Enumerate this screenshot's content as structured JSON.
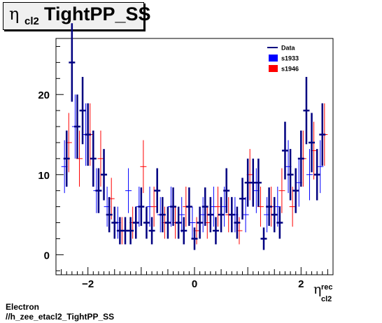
{
  "title": {
    "symbol": "η",
    "subscript": "cl2",
    "name": "TightPP_SS"
  },
  "xaxis": {
    "symbol": "η",
    "sup": "rec",
    "sub": "cl2"
  },
  "footer": {
    "line1": "Electron",
    "line2": "//h_zee_etacl2_TightPP_SS"
  },
  "legend": [
    {
      "label": "Data",
      "kind": "line",
      "color": "#000080"
    },
    {
      "label": "s1933",
      "kind": "box",
      "color": "#0000ff"
    },
    {
      "label": "s1946",
      "kind": "box",
      "color": "#ff0000"
    }
  ],
  "chart_data": {
    "type": "scatter",
    "xlim": [
      -2.6,
      2.6
    ],
    "ylim": [
      -2.5,
      27
    ],
    "xticks": [
      -2,
      0,
      2
    ],
    "yticks": [
      0,
      10,
      20
    ],
    "series": [
      {
        "name": "s1933",
        "color": "#0000ff",
        "x": [
          -2.44,
          -2.24,
          -2.04,
          -1.84,
          -1.64,
          -1.44,
          -1.24,
          -1.04,
          -0.84,
          -0.64,
          -0.44,
          -0.24,
          -0.04,
          0.16,
          0.36,
          0.56,
          0.76,
          0.96,
          1.16,
          1.36,
          1.56,
          1.76,
          1.96,
          2.16,
          2.36
        ],
        "y": [
          11,
          16,
          15,
          8,
          6,
          4,
          8,
          6,
          6,
          5,
          6,
          5,
          4,
          5,
          6,
          6,
          5,
          5,
          8,
          5,
          6,
          11,
          9,
          10,
          11
        ],
        "yerr": [
          3.3,
          4,
          3.9,
          2.8,
          2.5,
          2,
          2.8,
          2.5,
          2.5,
          2.2,
          2.5,
          2.2,
          2,
          2.2,
          2.5,
          2.5,
          2.2,
          2.2,
          2.8,
          2.2,
          2.5,
          3.3,
          3,
          3.2,
          3.3
        ]
      },
      {
        "name": "s1946",
        "color": "#ff0000",
        "x": [
          -2.36,
          -2.16,
          -1.96,
          -1.76,
          -1.56,
          -1.36,
          -1.16,
          -0.96,
          -0.76,
          -0.56,
          -0.36,
          -0.16,
          0.04,
          0.24,
          0.44,
          0.64,
          0.84,
          1.04,
          1.24,
          1.44,
          1.64,
          1.84,
          2.04,
          2.24,
          2.44
        ],
        "y": [
          14,
          12,
          15,
          12,
          7,
          3,
          4,
          11,
          6,
          4,
          4,
          6,
          3,
          4,
          6,
          5,
          3,
          10,
          6,
          6,
          8,
          6,
          12,
          13,
          15
        ],
        "yerr": [
          3.7,
          3.5,
          3.9,
          3.5,
          2.6,
          1.7,
          2,
          3.3,
          2.5,
          2,
          2,
          2.5,
          1.7,
          2,
          2.5,
          2.2,
          1.7,
          3.2,
          2.5,
          2.5,
          2.8,
          2.5,
          3.5,
          3.6,
          3.9
        ]
      },
      {
        "name": "Data",
        "color": "#000080",
        "x": [
          -2.4,
          -2.3,
          -2.2,
          -2.1,
          -2,
          -1.9,
          -1.8,
          -1.7,
          -1.6,
          -1.5,
          -1.4,
          -1.3,
          -1.2,
          -1.1,
          -1,
          -0.9,
          -0.8,
          -0.7,
          -0.6,
          -0.5,
          -0.4,
          -0.3,
          -0.2,
          -0.1,
          0,
          0.1,
          0.2,
          0.3,
          0.4,
          0.5,
          0.6,
          0.7,
          0.8,
          0.9,
          1,
          1.1,
          1.2,
          1.3,
          1.4,
          1.5,
          1.6,
          1.7,
          1.8,
          1.9,
          2,
          2.1,
          2.2,
          2.3,
          2.4
        ],
        "y": [
          12,
          24,
          16,
          18,
          15,
          12,
          8,
          10,
          5,
          4,
          3,
          3,
          3,
          4,
          6,
          4,
          3,
          8,
          5,
          4,
          6,
          4,
          3,
          6,
          2,
          4,
          6,
          5,
          3,
          5,
          8,
          5,
          4,
          7,
          9,
          9,
          9,
          2,
          6,
          5,
          4,
          13,
          10,
          8,
          12,
          18,
          14,
          10,
          15
        ],
        "yerr": [
          3.5,
          4.9,
          4,
          4.2,
          3.9,
          3.5,
          2.8,
          3.2,
          2.2,
          2,
          1.7,
          1.7,
          1.7,
          2,
          2.4,
          2,
          1.7,
          2.8,
          2.2,
          2,
          2.4,
          2,
          1.7,
          2.4,
          1.4,
          2,
          2.4,
          2.2,
          1.7,
          2.2,
          2.8,
          2.2,
          2,
          2.6,
          3,
          3,
          3,
          1.4,
          2.4,
          2.2,
          2,
          3.6,
          3.2,
          2.8,
          3.5,
          4.2,
          3.7,
          3.2,
          3.9
        ]
      }
    ]
  }
}
